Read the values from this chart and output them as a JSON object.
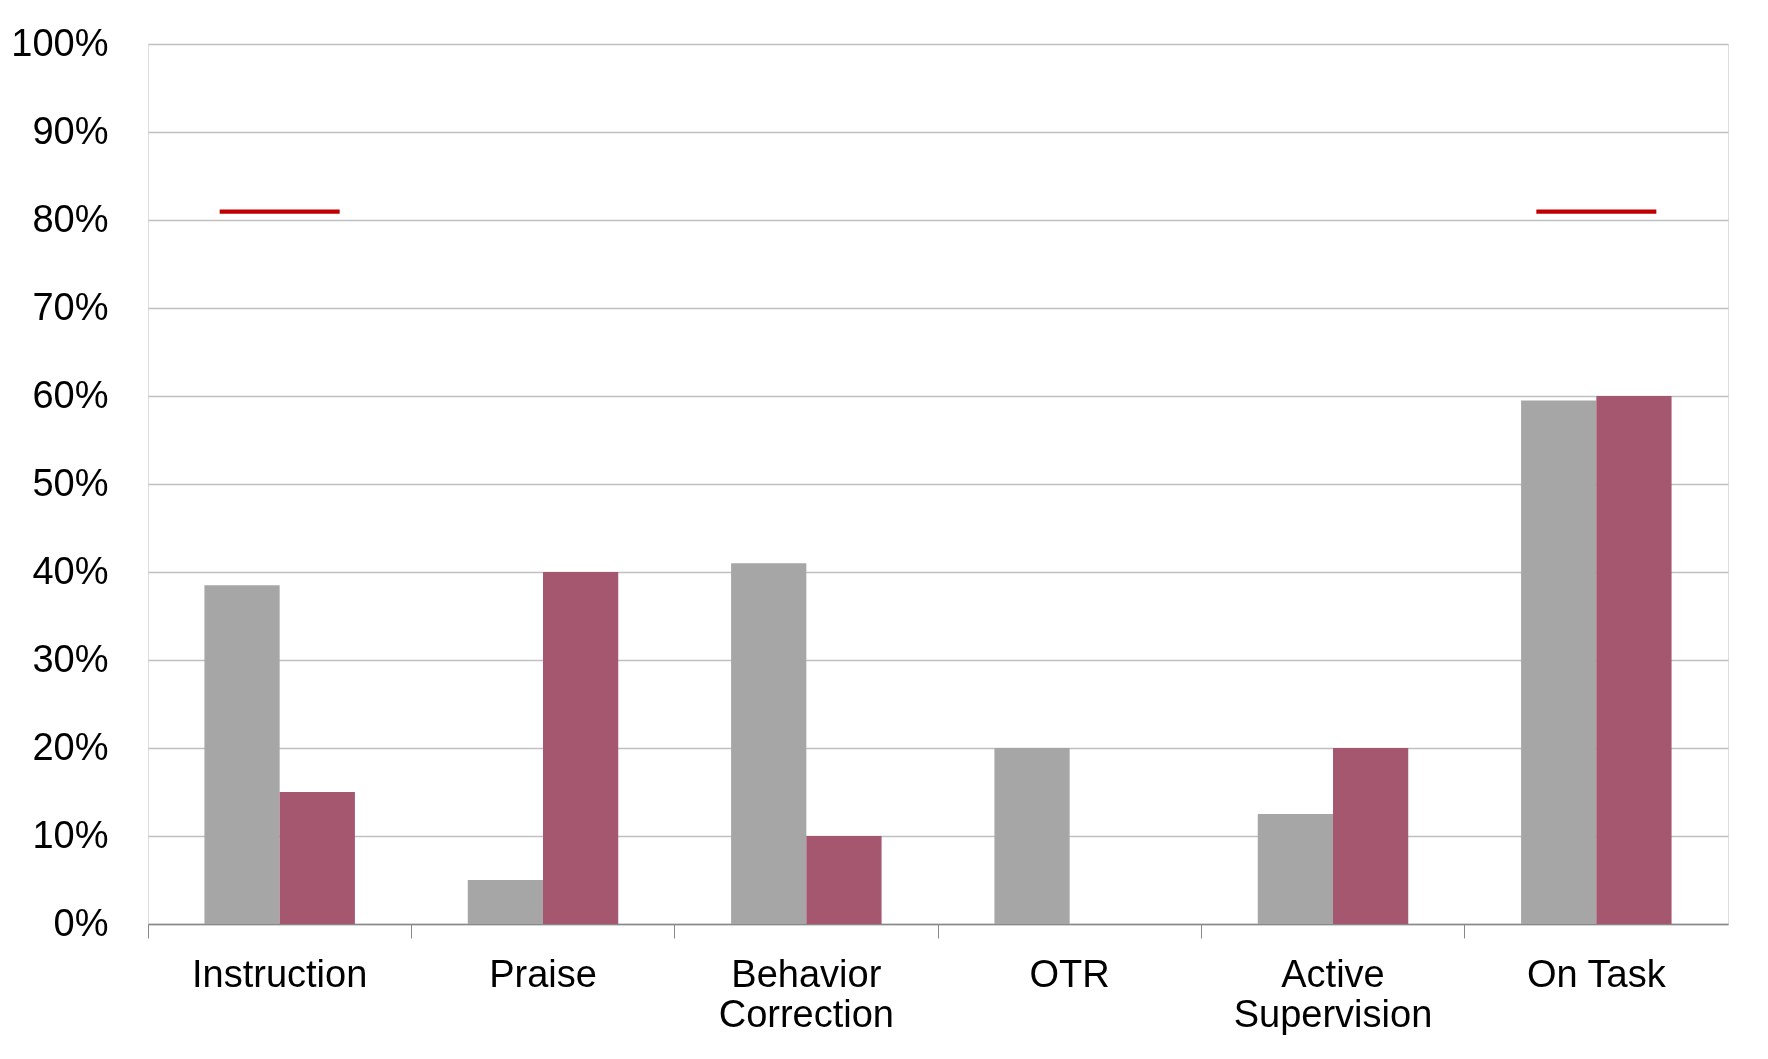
{
  "chart_data": {
    "type": "bar",
    "categories": [
      "Instruction",
      "Praise",
      "Behavior\nCorrection",
      "OTR",
      "Active\nSupervision",
      "On Task"
    ],
    "series": [
      {
        "color": "#a6a6a6",
        "values": [
          38.5,
          5,
          41,
          20,
          12.5,
          59.5
        ]
      },
      {
        "color": "#a5576f",
        "values": [
          15,
          40,
          10,
          0,
          20,
          60
        ]
      },
      {
        "type": "bar",
        "color": "#c00000",
        "base": [
          80.7,
          null,
          null,
          null,
          null,
          80.7
        ],
        "values": [
          0.5,
          null,
          null,
          null,
          null,
          0.5
        ]
      }
    ],
    "ylim": [
      0,
      100
    ],
    "yticks": [
      {
        "value": 0,
        "label": "0%"
      },
      {
        "value": 10,
        "label": "10%"
      },
      {
        "value": 20,
        "label": "20%"
      },
      {
        "value": 30,
        "label": "30%"
      },
      {
        "value": 40,
        "label": "40%"
      },
      {
        "value": 50,
        "label": "50%"
      },
      {
        "value": 60,
        "label": "60%"
      },
      {
        "value": 70,
        "label": "70%"
      },
      {
        "value": 80,
        "label": "80%"
      },
      {
        "value": 90,
        "label": "90%"
      },
      {
        "value": 100,
        "label": "100%"
      }
    ],
    "grid": "y"
  }
}
